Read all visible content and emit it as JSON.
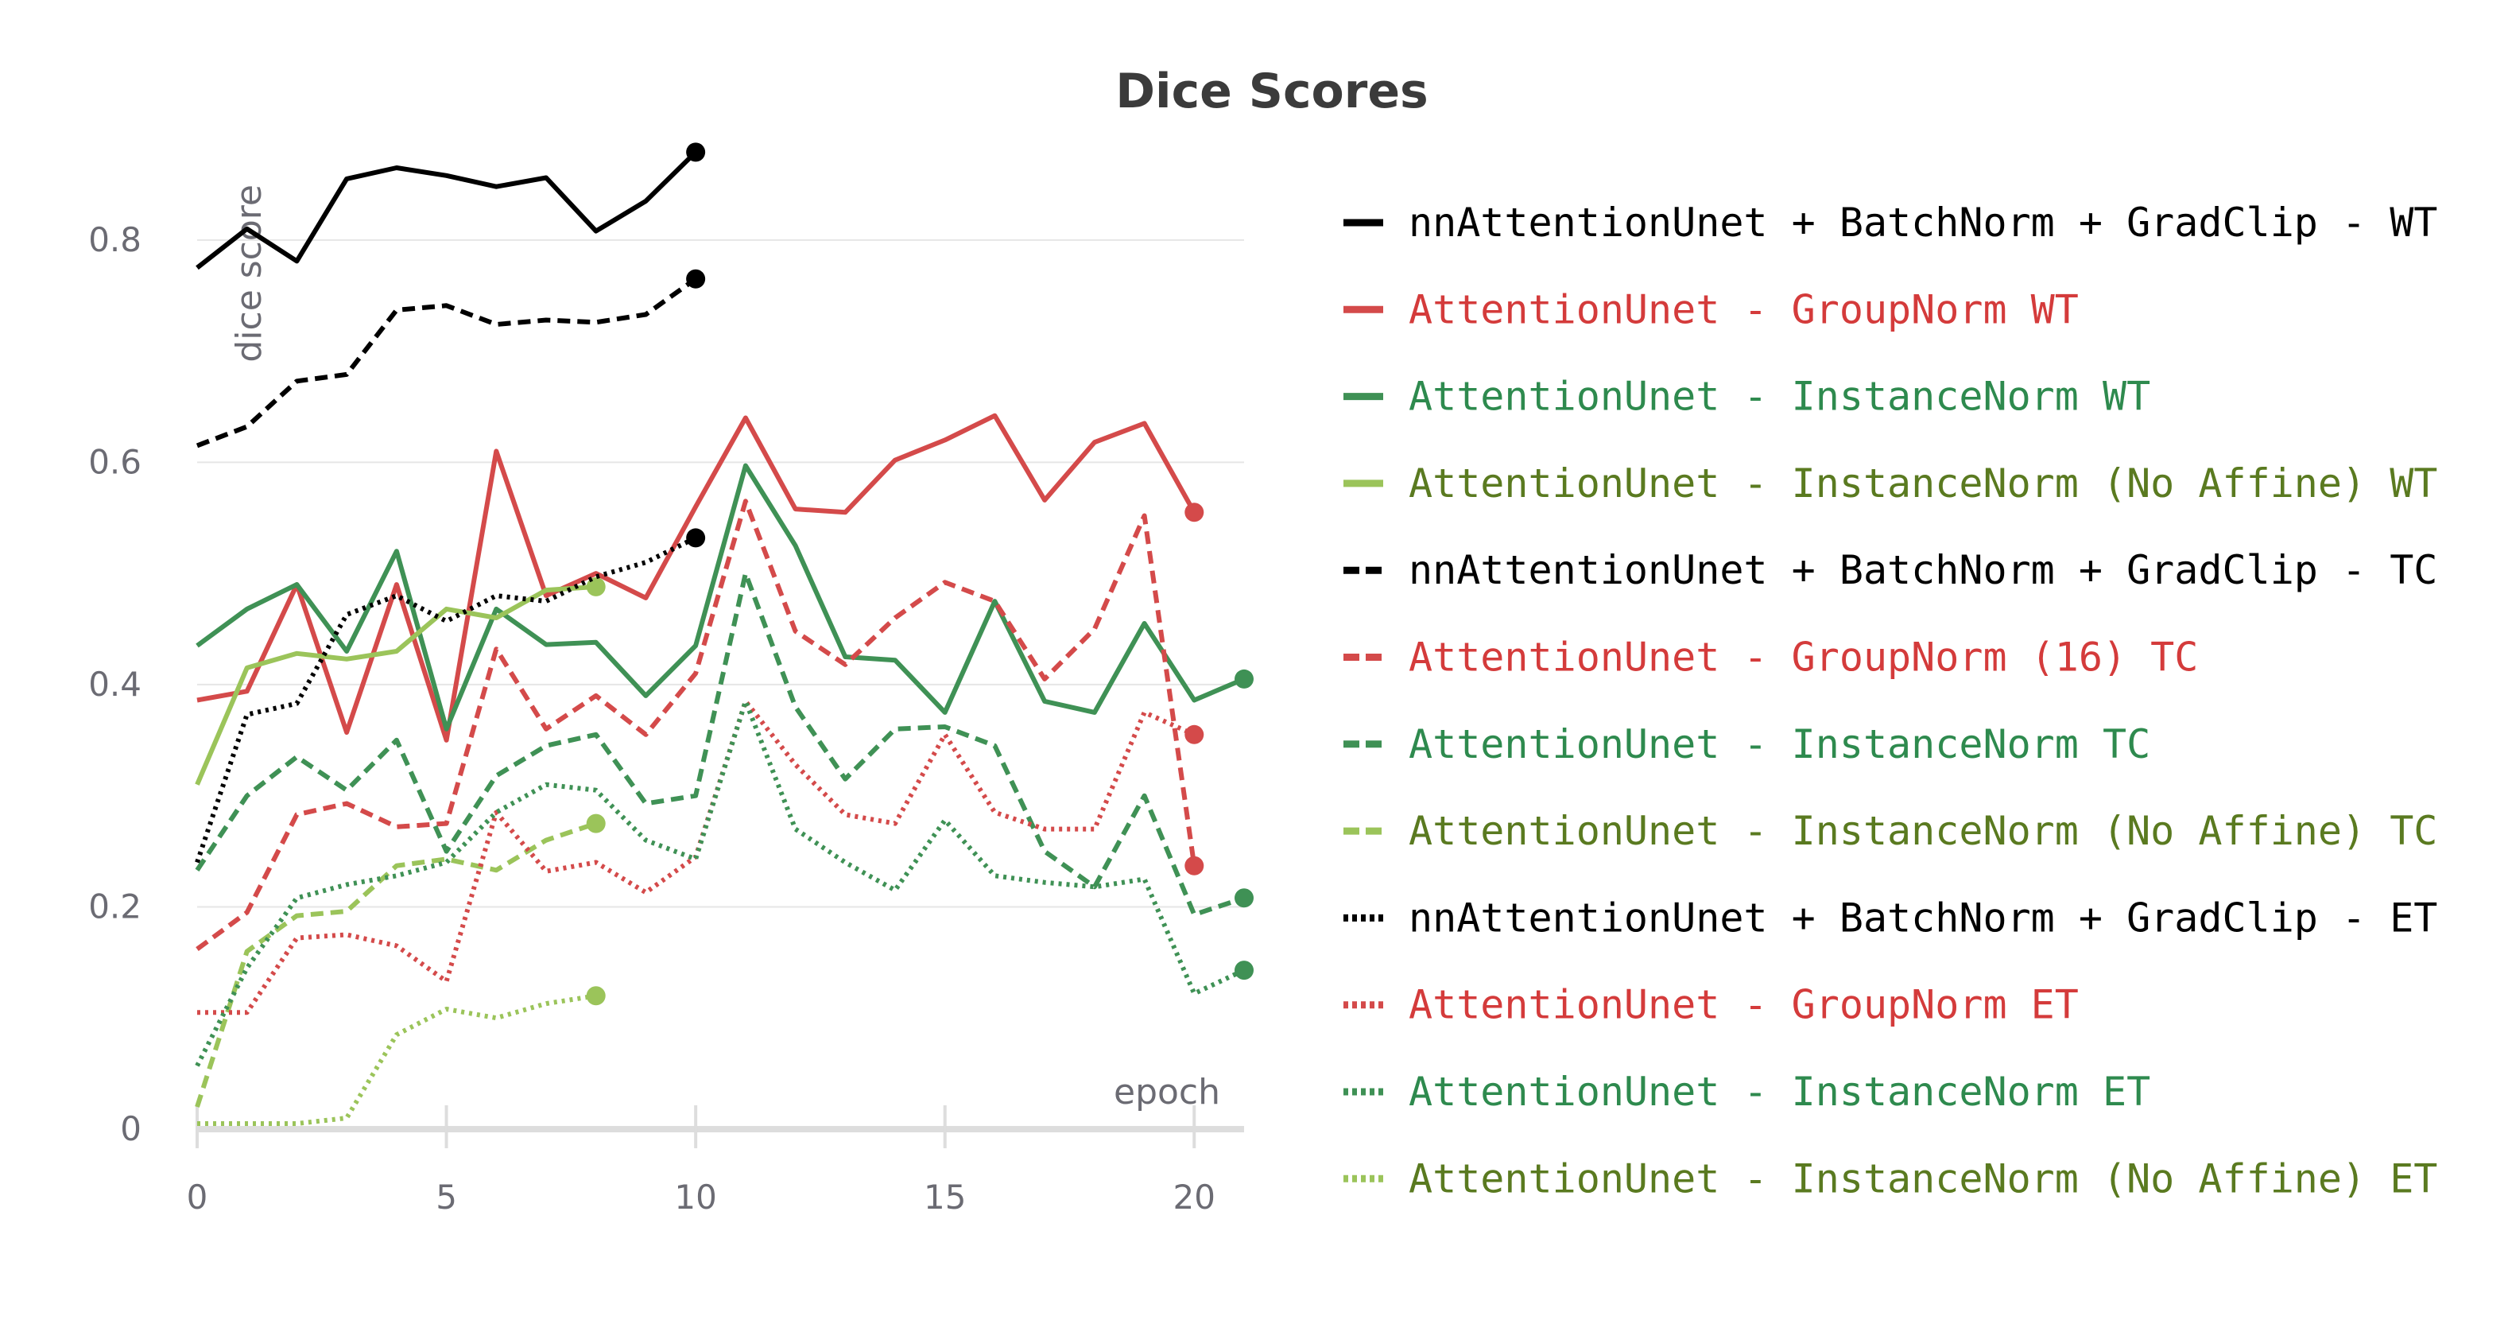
{
  "chart_data": {
    "type": "line",
    "title": "Dice Scores",
    "xlabel": "epoch",
    "ylabel": "dice score",
    "xlim": [
      0,
      21
    ],
    "ylim": [
      0,
      0.88
    ],
    "x_ticks": [
      0,
      5,
      10,
      15,
      20
    ],
    "y_ticks": [
      0,
      0.2,
      0.4,
      0.6,
      0.8
    ],
    "y_tick_labels": [
      "0",
      "0.2",
      "0.4",
      "0.6",
      "0.8"
    ],
    "grid": true,
    "legend_position": "right",
    "colors": {
      "black": "#000000",
      "red": "#d44a4a",
      "green": "#3f9155",
      "lightgreen": "#9bc45a",
      "red_text": "#d43b3b",
      "green_text": "#2e8a4e",
      "olive_text": "#5a7a20"
    },
    "series": [
      {
        "name": "nnAttentionUnet + BatchNorm + GradClip - WT",
        "color": "#000000",
        "text_color": "#000000",
        "dash": "solid",
        "x": [
          0,
          1,
          2,
          3,
          4,
          5,
          6,
          7,
          8,
          9,
          10
        ],
        "y": [
          0.775,
          0.81,
          0.781,
          0.855,
          0.865,
          0.858,
          0.848,
          0.856,
          0.808,
          0.835,
          0.879
        ]
      },
      {
        "name": "AttentionUnet - GroupNorm WT",
        "color": "#d44a4a",
        "text_color": "#d43b3b",
        "dash": "solid",
        "x": [
          0,
          1,
          2,
          3,
          4,
          5,
          6,
          7,
          8,
          9,
          10,
          11,
          12,
          13,
          14,
          15,
          16,
          17,
          18,
          19,
          20
        ],
        "y": [
          0.386,
          0.394,
          0.49,
          0.357,
          0.49,
          0.35,
          0.61,
          0.48,
          0.5,
          0.478,
          0.56,
          0.64,
          0.558,
          0.555,
          0.602,
          0.62,
          0.642,
          0.566,
          0.618,
          0.635,
          0.555
        ]
      },
      {
        "name": "AttentionUnet - InstanceNorm WT",
        "color": "#3f9155",
        "text_color": "#2e8a4e",
        "dash": "solid",
        "x": [
          0,
          1,
          2,
          3,
          4,
          5,
          6,
          7,
          8,
          9,
          10,
          11,
          12,
          13,
          14,
          15,
          16,
          17,
          18,
          19,
          20,
          21
        ],
        "y": [
          0.435,
          0.468,
          0.49,
          0.43,
          0.52,
          0.36,
          0.468,
          0.436,
          0.438,
          0.39,
          0.435,
          0.597,
          0.525,
          0.425,
          0.422,
          0.375,
          0.475,
          0.385,
          0.375,
          0.455,
          0.386,
          0.405
        ]
      },
      {
        "name": "AttentionUnet - InstanceNorm (No Affine) WT",
        "color": "#9bc45a",
        "text_color": "#5a7a20",
        "dash": "solid",
        "x": [
          0,
          1,
          2,
          3,
          4,
          5,
          6,
          7,
          8
        ],
        "y": [
          0.31,
          0.415,
          0.428,
          0.423,
          0.43,
          0.468,
          0.46,
          0.485,
          0.488
        ]
      },
      {
        "name": "nnAttentionUnet + BatchNorm + GradClip - TC",
        "color": "#000000",
        "text_color": "#000000",
        "dash": "dashed",
        "x": [
          0,
          1,
          2,
          3,
          4,
          5,
          6,
          7,
          8,
          9,
          10
        ],
        "y": [
          0.615,
          0.632,
          0.673,
          0.679,
          0.737,
          0.741,
          0.724,
          0.728,
          0.726,
          0.733,
          0.765
        ]
      },
      {
        "name": "AttentionUnet - GroupNorm (16) TC",
        "color": "#d44a4a",
        "text_color": "#d43b3b",
        "dash": "dashed",
        "x": [
          0,
          1,
          2,
          3,
          4,
          5,
          6,
          7,
          8,
          9,
          10,
          11,
          12,
          13,
          14,
          15,
          16,
          17,
          18,
          19,
          20
        ],
        "y": [
          0.162,
          0.195,
          0.283,
          0.293,
          0.272,
          0.275,
          0.432,
          0.36,
          0.39,
          0.355,
          0.41,
          0.565,
          0.448,
          0.418,
          0.46,
          0.492,
          0.475,
          0.405,
          0.45,
          0.552,
          0.237
        ]
      },
      {
        "name": "AttentionUnet - InstanceNorm TC",
        "color": "#3f9155",
        "text_color": "#2e8a4e",
        "dash": "dashed",
        "x": [
          0,
          1,
          2,
          3,
          4,
          5,
          6,
          7,
          8,
          9,
          10,
          11,
          12,
          13,
          14,
          15,
          16,
          17,
          18,
          19,
          20,
          21
        ],
        "y": [
          0.233,
          0.3,
          0.335,
          0.305,
          0.35,
          0.25,
          0.318,
          0.345,
          0.355,
          0.293,
          0.3,
          0.5,
          0.38,
          0.315,
          0.36,
          0.362,
          0.345,
          0.25,
          0.218,
          0.3,
          0.193,
          0.208
        ]
      },
      {
        "name": "AttentionUnet - InstanceNorm (No Affine) TC",
        "color": "#9bc45a",
        "text_color": "#5a7a20",
        "dash": "dashed",
        "x": [
          0,
          1,
          2,
          3,
          4,
          5,
          6,
          7,
          8
        ],
        "y": [
          0.02,
          0.16,
          0.192,
          0.196,
          0.237,
          0.243,
          0.233,
          0.26,
          0.275
        ]
      },
      {
        "name": "nnAttentionUnet + BatchNorm + GradClip - ET",
        "color": "#000000",
        "text_color": "#000000",
        "dash": "dotted",
        "x": [
          0,
          1,
          2,
          3,
          4,
          5,
          6,
          7,
          8,
          9,
          10
        ],
        "y": [
          0.24,
          0.373,
          0.383,
          0.463,
          0.48,
          0.457,
          0.48,
          0.475,
          0.497,
          0.51,
          0.532
        ]
      },
      {
        "name": "AttentionUnet - GroupNorm ET",
        "color": "#d44a4a",
        "text_color": "#d43b3b",
        "dash": "dotted",
        "x": [
          0,
          1,
          2,
          3,
          4,
          5,
          6,
          7,
          8,
          9,
          10,
          11,
          12,
          13,
          14,
          15,
          16,
          17,
          18,
          19,
          20
        ],
        "y": [
          0.105,
          0.105,
          0.172,
          0.175,
          0.165,
          0.133,
          0.285,
          0.232,
          0.24,
          0.213,
          0.245,
          0.385,
          0.328,
          0.283,
          0.275,
          0.355,
          0.285,
          0.27,
          0.27,
          0.375,
          0.355
        ]
      },
      {
        "name": "AttentionUnet - InstanceNorm ET",
        "color": "#3f9155",
        "text_color": "#2e8a4e",
        "dash": "dotted",
        "x": [
          0,
          1,
          2,
          3,
          4,
          5,
          6,
          7,
          8,
          9,
          10,
          11,
          12,
          13,
          14,
          15,
          16,
          17,
          18,
          19,
          20,
          21
        ],
        "y": [
          0.057,
          0.145,
          0.208,
          0.22,
          0.228,
          0.24,
          0.285,
          0.31,
          0.305,
          0.26,
          0.243,
          0.385,
          0.27,
          0.24,
          0.215,
          0.278,
          0.228,
          0.222,
          0.218,
          0.225,
          0.122,
          0.143
        ]
      },
      {
        "name": "AttentionUnet - InstanceNorm (No Affine) ET",
        "color": "#9bc45a",
        "text_color": "#5a7a20",
        "dash": "dotted",
        "x": [
          0,
          1,
          2,
          3,
          4,
          5,
          6,
          7,
          8
        ],
        "y": [
          0.005,
          0.005,
          0.005,
          0.01,
          0.085,
          0.108,
          0.1,
          0.113,
          0.12
        ]
      }
    ]
  }
}
